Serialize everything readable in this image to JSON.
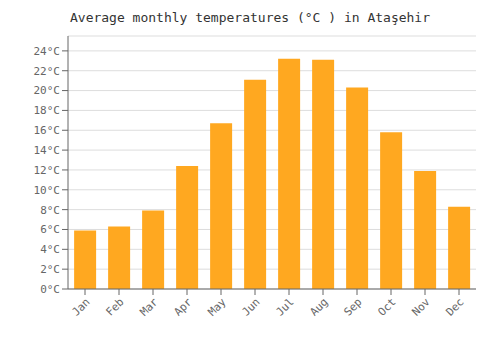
{
  "chart_data": {
    "type": "bar",
    "title": "Average monthly temperatures (°C ) in Ataşehir",
    "categories": [
      "Jan",
      "Feb",
      "Mar",
      "Apr",
      "May",
      "Jun",
      "Jul",
      "Aug",
      "Sep",
      "Oct",
      "Nov",
      "Dec"
    ],
    "values": [
      5.9,
      6.3,
      7.9,
      12.4,
      16.7,
      21.1,
      23.2,
      23.1,
      20.3,
      15.8,
      11.9,
      8.3
    ],
    "color": "#FFA820",
    "ylim": [
      0,
      25.5
    ],
    "yticks": [
      {
        "value": 0,
        "label": "0°C"
      },
      {
        "value": 2,
        "label": "2°C"
      },
      {
        "value": 4,
        "label": "4°C"
      },
      {
        "value": 6,
        "label": "6°C"
      },
      {
        "value": 8,
        "label": "8°C"
      },
      {
        "value": 10,
        "label": "10°C"
      },
      {
        "value": 12,
        "label": "12°C"
      },
      {
        "value": 14,
        "label": "14°C"
      },
      {
        "value": 16,
        "label": "16°C"
      },
      {
        "value": 18,
        "label": "18°C"
      },
      {
        "value": 20,
        "label": "20°C"
      },
      {
        "value": 22,
        "label": "22°C"
      },
      {
        "value": 24,
        "label": "24°C"
      }
    ],
    "grid": true
  }
}
